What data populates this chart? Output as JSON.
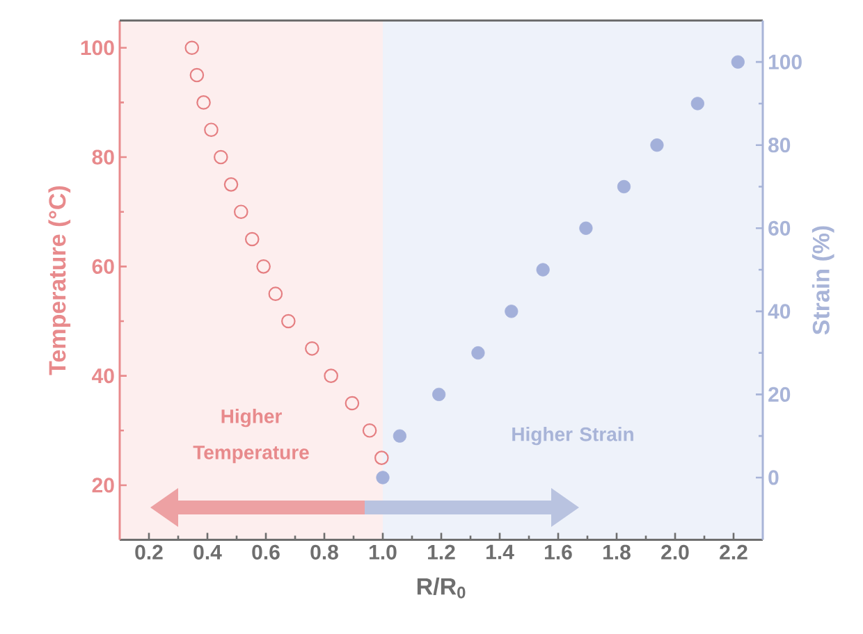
{
  "chart_data": {
    "type": "scatter",
    "xlabel": "R/R$_{0}$",
    "ylabel": "Temperature (°C)",
    "y2label": "Strain (%)",
    "xlim": [
      0.1,
      2.3
    ],
    "xticks": [
      {
        "value": 0.2,
        "label": "0.2"
      },
      {
        "value": 0.4,
        "label": "0.4"
      },
      {
        "value": 0.6,
        "label": "0.6"
      },
      {
        "value": 0.8,
        "label": "0.8"
      },
      {
        "value": 1.0,
        "label": "1.0"
      },
      {
        "value": 1.2,
        "label": "1.2"
      },
      {
        "value": 1.4,
        "label": "1.4"
      },
      {
        "value": 1.6,
        "label": "1.6"
      },
      {
        "value": 1.8,
        "label": "1.8"
      },
      {
        "value": 2.0,
        "label": "2.0"
      },
      {
        "value": 2.2,
        "label": "2.2"
      }
    ],
    "ylim": [
      10,
      105
    ],
    "yticks": [
      20,
      40,
      60,
      80,
      100
    ],
    "y2lim": [
      -15,
      110
    ],
    "y2ticks": [
      0,
      20,
      40,
      60,
      80,
      100
    ],
    "marker": "circle",
    "grid": false,
    "series": [
      {
        "color": "#e57f82",
        "x": [
          0.347,
          0.364,
          0.387,
          0.413,
          0.446,
          0.481,
          0.515,
          0.553,
          0.592,
          0.633,
          0.677,
          0.758,
          0.823,
          0.895,
          0.955,
          0.996
        ],
        "values": [
          100,
          95,
          90,
          85,
          80,
          75,
          70,
          65,
          60,
          55,
          50,
          45,
          40,
          35,
          30,
          25
        ]
      },
      {
        "color": "#a3b0da",
        "axis": "y2",
        "x": [
          1.0,
          1.058,
          1.192,
          1.326,
          1.44,
          1.548,
          1.695,
          1.825,
          1.938,
          2.077,
          2.215
        ],
        "values": [
          0,
          10,
          20,
          30,
          40,
          50,
          60,
          70,
          80,
          90,
          100
        ]
      }
    ],
    "bands": [
      {
        "axis": "x",
        "from": 0.1,
        "to": 1.0,
        "label": "Higher Temperature",
        "color": "#fdeeee"
      },
      {
        "axis": "x",
        "from": 1.0,
        "to": 2.3,
        "label": "Higher Strain",
        "color": "#eef2fa"
      }
    ]
  }
}
